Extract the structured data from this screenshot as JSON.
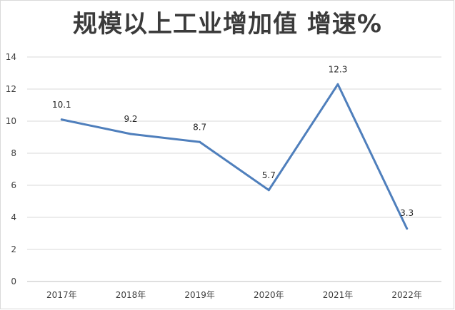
{
  "chart_data": {
    "type": "line",
    "title": "规模以上工业增加值 增速%",
    "categories": [
      "2017年",
      "2018年",
      "2019年",
      "2020年",
      "2021年",
      "2022年"
    ],
    "values": [
      10.1,
      9.2,
      8.7,
      5.7,
      12.3,
      3.3
    ],
    "data_labels": [
      "10.1",
      "9.2",
      "8.7",
      "5.7",
      "12.3",
      "3.3"
    ],
    "ylim": [
      0,
      14
    ],
    "yticks": [
      "0",
      "2",
      "4",
      "6",
      "8",
      "10",
      "12",
      "14"
    ],
    "grid": true,
    "legend": "none",
    "line_color": "#4f7fbc"
  }
}
